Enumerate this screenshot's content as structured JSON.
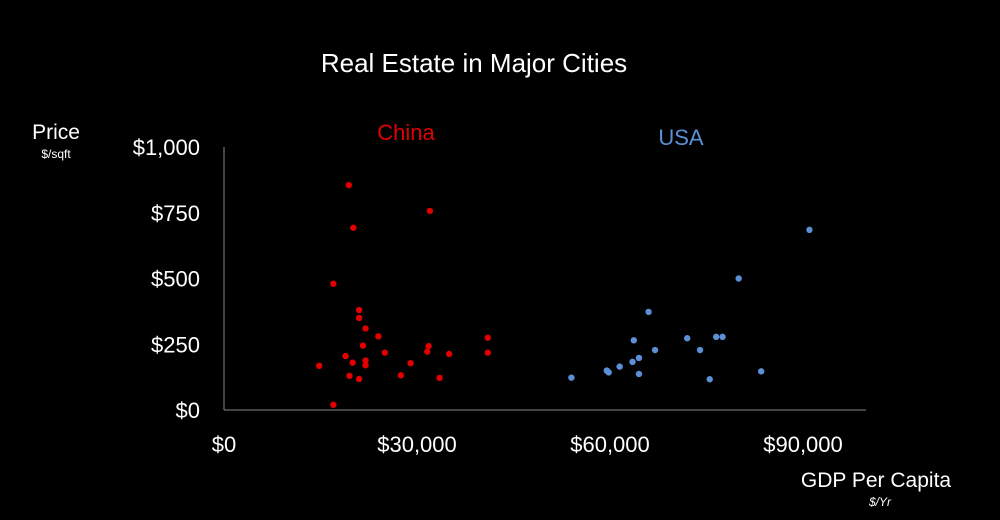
{
  "chart_data": {
    "type": "scatter",
    "title": "Real Estate in Major Cities",
    "ylabel": "Price",
    "ylabel_unit": "$/sqft",
    "xlabel": "GDP Per Capita",
    "xlabel_unit": "$/Yr",
    "xlim": [
      0,
      100000
    ],
    "ylim": [
      0,
      1000
    ],
    "x_ticks": [
      0,
      30000,
      60000,
      90000
    ],
    "x_tick_labels": [
      "$0",
      "$30,000",
      "$60,000",
      "$90,000"
    ],
    "y_ticks": [
      0,
      250,
      500,
      750,
      1000
    ],
    "y_tick_labels": [
      "$0",
      "$250",
      "$500",
      "$750",
      "$1,000"
    ],
    "grid": false,
    "series": [
      {
        "name": "China",
        "color": "#e00000",
        "points": [
          {
            "x": 19400,
            "y": 855
          },
          {
            "x": 20100,
            "y": 693
          },
          {
            "x": 32000,
            "y": 757
          },
          {
            "x": 17000,
            "y": 480
          },
          {
            "x": 21000,
            "y": 380
          },
          {
            "x": 21000,
            "y": 350
          },
          {
            "x": 22000,
            "y": 310
          },
          {
            "x": 24000,
            "y": 280
          },
          {
            "x": 21600,
            "y": 245
          },
          {
            "x": 41000,
            "y": 275
          },
          {
            "x": 31800,
            "y": 243
          },
          {
            "x": 31600,
            "y": 222
          },
          {
            "x": 35000,
            "y": 213
          },
          {
            "x": 41000,
            "y": 218
          },
          {
            "x": 25000,
            "y": 218
          },
          {
            "x": 18900,
            "y": 205
          },
          {
            "x": 22000,
            "y": 188
          },
          {
            "x": 20000,
            "y": 180
          },
          {
            "x": 29000,
            "y": 178
          },
          {
            "x": 22000,
            "y": 170
          },
          {
            "x": 14800,
            "y": 168
          },
          {
            "x": 19500,
            "y": 130
          },
          {
            "x": 27500,
            "y": 132
          },
          {
            "x": 33500,
            "y": 122
          },
          {
            "x": 21000,
            "y": 118
          },
          {
            "x": 17000,
            "y": 20
          }
        ]
      },
      {
        "name": "USA",
        "color": "#5b8fd6",
        "points": [
          {
            "x": 91000,
            "y": 685
          },
          {
            "x": 80000,
            "y": 500
          },
          {
            "x": 66000,
            "y": 373
          },
          {
            "x": 63700,
            "y": 265
          },
          {
            "x": 72000,
            "y": 273
          },
          {
            "x": 76500,
            "y": 278
          },
          {
            "x": 77500,
            "y": 278
          },
          {
            "x": 67000,
            "y": 228
          },
          {
            "x": 74000,
            "y": 228
          },
          {
            "x": 64500,
            "y": 198
          },
          {
            "x": 63500,
            "y": 183
          },
          {
            "x": 61500,
            "y": 165
          },
          {
            "x": 59500,
            "y": 150
          },
          {
            "x": 59800,
            "y": 143
          },
          {
            "x": 64500,
            "y": 137
          },
          {
            "x": 83500,
            "y": 147
          },
          {
            "x": 54000,
            "y": 123
          },
          {
            "x": 75500,
            "y": 117
          }
        ]
      }
    ]
  }
}
